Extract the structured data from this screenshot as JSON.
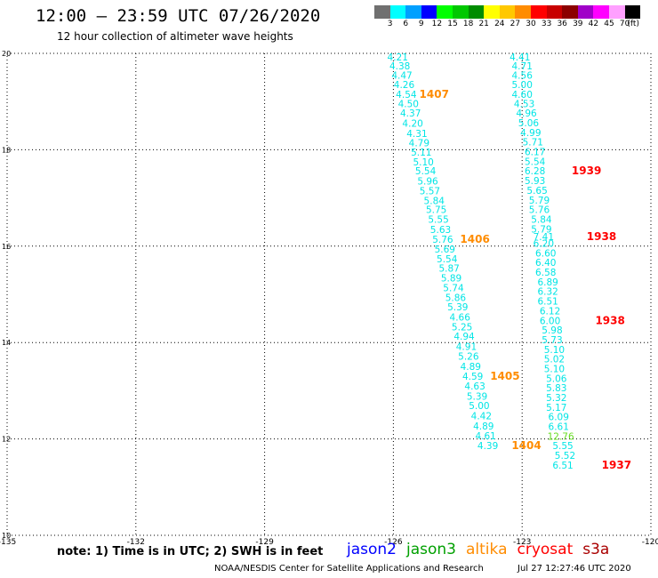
{
  "header": {
    "title": "12:00 – 23:59 UTC 07/26/2020",
    "subtitle": "12 hour collection of altimeter wave heights"
  },
  "scale": {
    "unit_label": "(ft)",
    "items": [
      {
        "label": "3",
        "color": "#707070"
      },
      {
        "label": "6",
        "color": "#00ffff"
      },
      {
        "label": "9",
        "color": "#00a0ff"
      },
      {
        "label": "12",
        "color": "#0000ff"
      },
      {
        "label": "15",
        "color": "#00ff00"
      },
      {
        "label": "18",
        "color": "#00c800"
      },
      {
        "label": "21",
        "color": "#008c00"
      },
      {
        "label": "24",
        "color": "#ffff00"
      },
      {
        "label": "27",
        "color": "#ffc800"
      },
      {
        "label": "30",
        "color": "#ff8c00"
      },
      {
        "label": "33",
        "color": "#ff0000"
      },
      {
        "label": "36",
        "color": "#c80000"
      },
      {
        "label": "39",
        "color": "#8c0000"
      },
      {
        "label": "42",
        "color": "#a000c8"
      },
      {
        "label": "45",
        "color": "#ff00ff"
      },
      {
        "label": "70",
        "color": "#ffa0ff"
      },
      {
        "label": "",
        "color": "#000000"
      }
    ]
  },
  "map": {
    "lon_min": -135,
    "lon_max": -120,
    "lat_min": 10,
    "lat_max": 20,
    "lon_ticks": [
      {
        "value": -135,
        "label": "-135"
      },
      {
        "value": -132,
        "label": "-132"
      },
      {
        "value": -129,
        "label": "-129"
      },
      {
        "value": -126,
        "label": "-126"
      },
      {
        "value": -123,
        "label": "-123"
      },
      {
        "value": -120,
        "label": "-120"
      }
    ],
    "lat_ticks": [
      {
        "value": 20,
        "label": "20"
      },
      {
        "value": 18,
        "label": "18"
      },
      {
        "value": 16,
        "label": "16"
      },
      {
        "value": 14,
        "label": "14"
      },
      {
        "value": 12,
        "label": "12"
      },
      {
        "value": 10,
        "label": "10"
      }
    ],
    "tracks": [
      {
        "name": "track-west",
        "color": "#00e5e5",
        "points": [
          {
            "lon": -125.9,
            "lat": 19.93,
            "swh": "4.21"
          },
          {
            "lon": -125.85,
            "lat": 19.74,
            "swh": "4.38"
          },
          {
            "lon": -125.8,
            "lat": 19.55,
            "swh": "4.47"
          },
          {
            "lon": -125.75,
            "lat": 19.35,
            "swh": "4.26"
          },
          {
            "lon": -125.7,
            "lat": 19.15,
            "swh": "4.54"
          },
          {
            "lon": -125.65,
            "lat": 18.96,
            "swh": "4.50"
          },
          {
            "lon": -125.6,
            "lat": 18.76,
            "swh": "4.37"
          },
          {
            "lon": -125.55,
            "lat": 18.55,
            "swh": "4.20"
          },
          {
            "lon": -125.45,
            "lat": 18.34,
            "swh": "4.31"
          },
          {
            "lon": -125.4,
            "lat": 18.15,
            "swh": "4.79"
          },
          {
            "lon": -125.35,
            "lat": 17.95,
            "swh": "5.11"
          },
          {
            "lon": -125.3,
            "lat": 17.75,
            "swh": "5.10"
          },
          {
            "lon": -125.25,
            "lat": 17.56,
            "swh": "5.54"
          },
          {
            "lon": -125.2,
            "lat": 17.35,
            "swh": "5.96"
          },
          {
            "lon": -125.15,
            "lat": 17.15,
            "swh": "5.57"
          },
          {
            "lon": -125.05,
            "lat": 16.95,
            "swh": "5.84"
          },
          {
            "lon": -125.0,
            "lat": 16.76,
            "swh": "5.75"
          },
          {
            "lon": -124.95,
            "lat": 16.56,
            "swh": "5.55"
          },
          {
            "lon": -124.9,
            "lat": 16.35,
            "swh": "5.63"
          },
          {
            "lon": -124.85,
            "lat": 16.14,
            "swh": "5.76"
          },
          {
            "lon": -124.8,
            "lat": 15.94,
            "swh": "5.69"
          },
          {
            "lon": -124.75,
            "lat": 15.74,
            "swh": "5.54"
          },
          {
            "lon": -124.7,
            "lat": 15.54,
            "swh": "5.87"
          },
          {
            "lon": -124.65,
            "lat": 15.34,
            "swh": "5.89"
          },
          {
            "lon": -124.6,
            "lat": 15.14,
            "swh": "5.74"
          },
          {
            "lon": -124.55,
            "lat": 14.94,
            "swh": "5.86"
          },
          {
            "lon": -124.5,
            "lat": 14.74,
            "swh": "5.39"
          },
          {
            "lon": -124.45,
            "lat": 14.53,
            "swh": "4.66"
          },
          {
            "lon": -124.4,
            "lat": 14.33,
            "swh": "5.25"
          },
          {
            "lon": -124.35,
            "lat": 14.13,
            "swh": "4.94"
          },
          {
            "lon": -124.3,
            "lat": 13.92,
            "swh": "4.91"
          },
          {
            "lon": -124.25,
            "lat": 13.72,
            "swh": "5.26"
          },
          {
            "lon": -124.2,
            "lat": 13.51,
            "swh": "4.89"
          },
          {
            "lon": -124.15,
            "lat": 13.3,
            "swh": "4.59"
          },
          {
            "lon": -124.1,
            "lat": 13.1,
            "swh": "4.63"
          },
          {
            "lon": -124.05,
            "lat": 12.89,
            "swh": "5.39"
          },
          {
            "lon": -124.0,
            "lat": 12.69,
            "swh": "5.00"
          },
          {
            "lon": -123.95,
            "lat": 12.48,
            "swh": "4.42"
          },
          {
            "lon": -123.9,
            "lat": 12.27,
            "swh": "4.89"
          },
          {
            "lon": -123.85,
            "lat": 12.07,
            "swh": "4.61"
          },
          {
            "lon": -123.8,
            "lat": 11.86,
            "swh": "4.39"
          }
        ]
      },
      {
        "name": "track-east",
        "color": "#00e5e5",
        "points": [
          {
            "lon": -123.05,
            "lat": 19.93,
            "swh": "4.41"
          },
          {
            "lon": -123.0,
            "lat": 19.74,
            "swh": "4.71"
          },
          {
            "lon": -123.0,
            "lat": 19.55,
            "swh": "4.56"
          },
          {
            "lon": -123.0,
            "lat": 19.35,
            "swh": "5.00"
          },
          {
            "lon": -123.0,
            "lat": 19.15,
            "swh": "4.60"
          },
          {
            "lon": -122.95,
            "lat": 18.96,
            "swh": "4.53"
          },
          {
            "lon": -122.9,
            "lat": 18.76,
            "swh": "4.96"
          },
          {
            "lon": -122.85,
            "lat": 18.56,
            "swh": "5.06"
          },
          {
            "lon": -122.8,
            "lat": 18.36,
            "swh": "4.99"
          },
          {
            "lon": -122.75,
            "lat": 18.16,
            "swh": "5.71"
          },
          {
            "lon": -122.7,
            "lat": 17.96,
            "swh": "6.17"
          },
          {
            "lon": -122.7,
            "lat": 17.76,
            "swh": "5.54"
          },
          {
            "lon": -122.7,
            "lat": 17.56,
            "swh": "6.28"
          },
          {
            "lon": -122.7,
            "lat": 17.36,
            "swh": "5.93"
          },
          {
            "lon": -122.65,
            "lat": 17.16,
            "swh": "5.65"
          },
          {
            "lon": -122.6,
            "lat": 16.96,
            "swh": "5.79"
          },
          {
            "lon": -122.6,
            "lat": 16.76,
            "swh": "5.76"
          },
          {
            "lon": -122.55,
            "lat": 16.56,
            "swh": "5.84"
          },
          {
            "lon": -122.55,
            "lat": 16.36,
            "swh": "5.79"
          },
          {
            "lon": -122.5,
            "lat": 16.2,
            "swh": "7.41"
          },
          {
            "lon": -122.5,
            "lat": 16.06,
            "swh": "6.20"
          },
          {
            "lon": -122.45,
            "lat": 15.86,
            "swh": "6.60"
          },
          {
            "lon": -122.45,
            "lat": 15.66,
            "swh": "6.40"
          },
          {
            "lon": -122.45,
            "lat": 15.46,
            "swh": "6.58"
          },
          {
            "lon": -122.4,
            "lat": 15.26,
            "swh": "6.89"
          },
          {
            "lon": -122.4,
            "lat": 15.06,
            "swh": "6.32"
          },
          {
            "lon": -122.4,
            "lat": 14.86,
            "swh": "6.51"
          },
          {
            "lon": -122.35,
            "lat": 14.66,
            "swh": "6.12"
          },
          {
            "lon": -122.35,
            "lat": 14.46,
            "swh": "6.00"
          },
          {
            "lon": -122.3,
            "lat": 14.26,
            "swh": "5.98"
          },
          {
            "lon": -122.3,
            "lat": 14.06,
            "swh": "5.73"
          },
          {
            "lon": -122.25,
            "lat": 13.86,
            "swh": "5.10"
          },
          {
            "lon": -122.25,
            "lat": 13.66,
            "swh": "5.02"
          },
          {
            "lon": -122.25,
            "lat": 13.46,
            "swh": "5.10"
          },
          {
            "lon": -122.2,
            "lat": 13.26,
            "swh": "5.06"
          },
          {
            "lon": -122.2,
            "lat": 13.06,
            "swh": "5.83"
          },
          {
            "lon": -122.2,
            "lat": 12.86,
            "swh": "5.32"
          },
          {
            "lon": -122.2,
            "lat": 12.66,
            "swh": "5.17"
          },
          {
            "lon": -122.15,
            "lat": 12.46,
            "swh": "6.09"
          },
          {
            "lon": -122.15,
            "lat": 12.26,
            "swh": "6.61"
          },
          {
            "lon": -122.1,
            "lat": 12.06,
            "swh": "12.76",
            "color": "#66dd22"
          },
          {
            "lon": -122.05,
            "lat": 11.86,
            "swh": "5.55"
          },
          {
            "lon": -122.0,
            "lat": 11.66,
            "swh": "5.52"
          },
          {
            "lon": -122.05,
            "lat": 11.46,
            "swh": "6.51"
          }
        ]
      }
    ],
    "time_labels": [
      {
        "text": "1407",
        "lon": -125.05,
        "lat": 19.15,
        "color": "#ff8c00"
      },
      {
        "text": "1406",
        "lon": -124.1,
        "lat": 16.14,
        "color": "#ff8c00"
      },
      {
        "text": "1405",
        "lon": -123.4,
        "lat": 13.3,
        "color": "#ff8c00"
      },
      {
        "text": "1404",
        "lon": -122.9,
        "lat": 11.86,
        "color": "#ff8c00"
      },
      {
        "text": "1939",
        "lon": -121.5,
        "lat": 17.56,
        "color": "#ff0000"
      },
      {
        "text": "1938",
        "lon": -121.15,
        "lat": 16.2,
        "color": "#ff0000"
      },
      {
        "text": "1938",
        "lon": -120.95,
        "lat": 14.46,
        "color": "#ff0000"
      },
      {
        "text": "1937",
        "lon": -120.8,
        "lat": 11.46,
        "color": "#ff0000"
      }
    ]
  },
  "footer": {
    "note": "note: 1) Time is in UTC; 2) SWH is in feet",
    "satellites": [
      {
        "name": "jason2",
        "color": "#0000ff"
      },
      {
        "name": "jason3",
        "color": "#00a000"
      },
      {
        "name": "altika",
        "color": "#ff8c00"
      },
      {
        "name": "cryosat",
        "color": "#ff0000"
      },
      {
        "name": "s3a",
        "color": "#aa0000"
      }
    ],
    "credit": "NOAA/NESDIS Center for Satellite Applications and Research",
    "timestamp": "Jul 27 12:27:46 UTC 2020"
  }
}
